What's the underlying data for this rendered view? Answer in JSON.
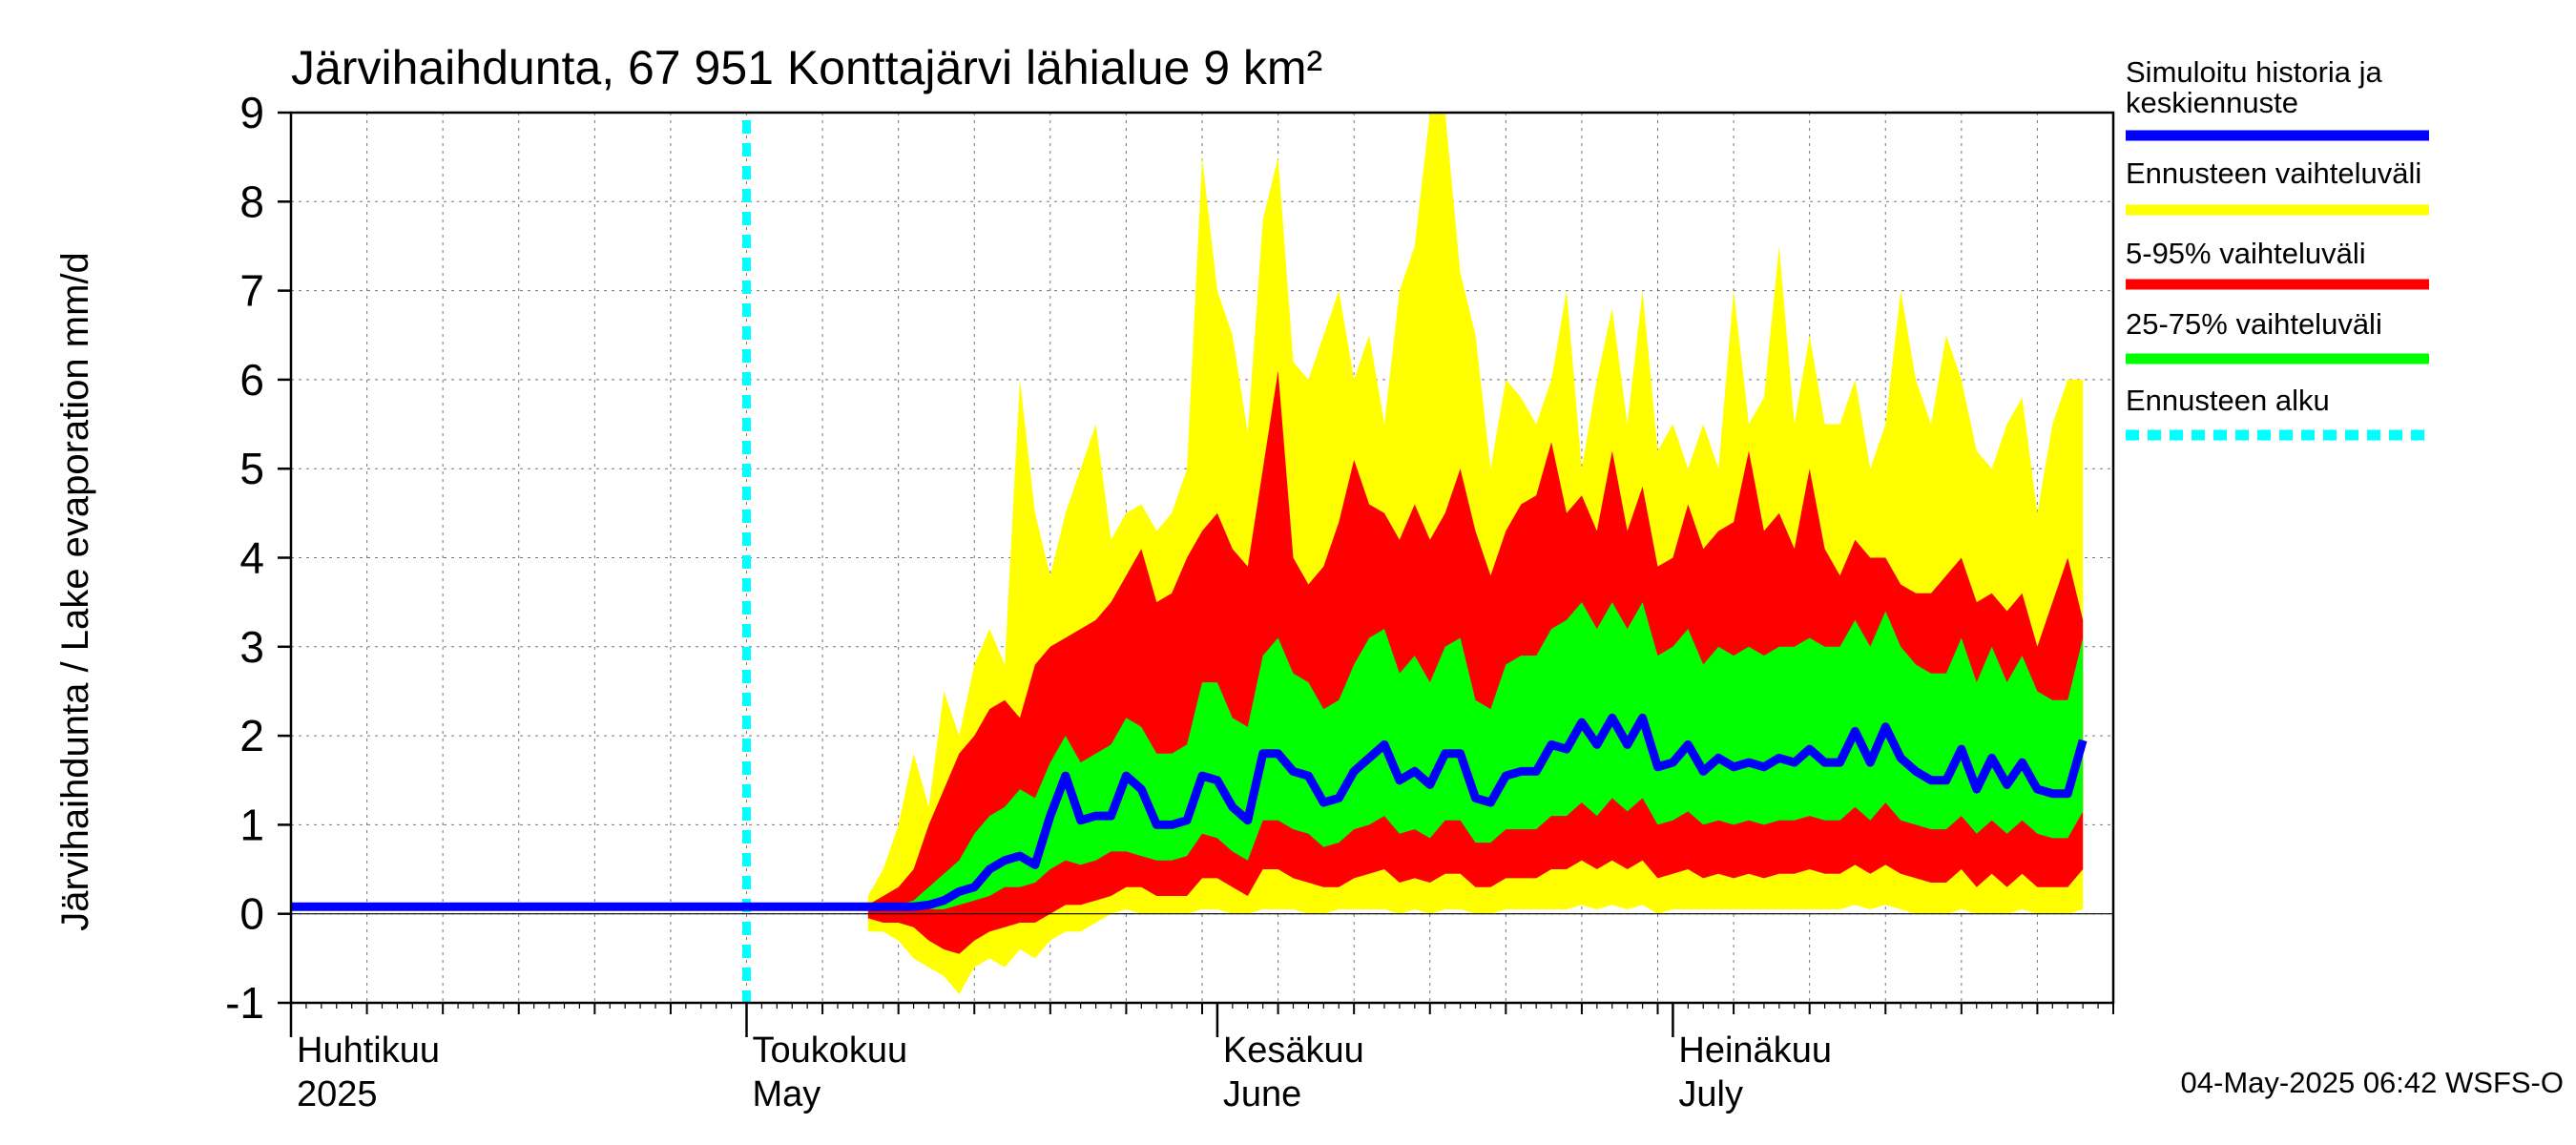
{
  "chart_data": {
    "type": "area",
    "title": "Järvihaihdunta, 67 951 Konttajärvi lähialue 9 km²",
    "ylabel": "Järvihaihdunta / Lake evaporation   mm/d",
    "xlabel": "",
    "ylim": [
      -1,
      9
    ],
    "yticks": [
      -1,
      0,
      1,
      2,
      3,
      4,
      5,
      6,
      7,
      8,
      9
    ],
    "x_range_days": [
      0,
      120
    ],
    "month_labels": [
      {
        "day": 0,
        "fi": "Huhtikuu",
        "en": "2025"
      },
      {
        "day": 30,
        "fi": "Toukokuu",
        "en": "May"
      },
      {
        "day": 61,
        "fi": "Kesäkuu",
        "en": "June"
      },
      {
        "day": 91,
        "fi": "Heinäkuu",
        "en": "July"
      }
    ],
    "forecast_start_day": 30,
    "legend": [
      {
        "label": "Simuloitu historia ja",
        "label2": "keskiennuste",
        "color": "#0000ff",
        "style": "solid"
      },
      {
        "label": "Ennusteen vaihteluväli",
        "color": "#ffff00",
        "style": "solid"
      },
      {
        "label": "5-95% vaihteluväli",
        "color": "#ff0000",
        "style": "solid"
      },
      {
        "label": "25-75% vaihteluväli",
        "color": "#00ff00",
        "style": "solid"
      },
      {
        "label": "Ennusteen alku",
        "color": "#00ffff",
        "style": "dotted"
      }
    ],
    "timestamp": "04-May-2025 06:42 WSFS-O",
    "series": {
      "start_day": 38,
      "median": [
        0.08,
        0.08,
        0.08,
        0.08,
        0.1,
        0.15,
        0.25,
        0.3,
        0.5,
        0.6,
        0.65,
        0.55,
        1.1,
        1.55,
        1.05,
        1.1,
        1.1,
        1.55,
        1.4,
        1.0,
        1.0,
        1.05,
        1.55,
        1.5,
        1.2,
        1.05,
        1.8,
        1.8,
        1.6,
        1.55,
        1.25,
        1.3,
        1.6,
        1.75,
        1.9,
        1.5,
        1.6,
        1.45,
        1.8,
        1.8,
        1.3,
        1.25,
        1.55,
        1.6,
        1.6,
        1.9,
        1.85,
        2.15,
        1.9,
        2.2,
        1.9,
        2.2,
        1.65,
        1.7,
        1.9,
        1.6,
        1.75,
        1.65,
        1.7,
        1.65,
        1.75,
        1.7,
        1.85,
        1.7,
        1.7,
        2.05,
        1.7,
        2.1,
        1.75,
        1.6,
        1.5,
        1.5,
        1.85,
        1.4,
        1.75,
        1.45,
        1.7,
        1.4,
        1.35,
        1.35,
        1.95
      ],
      "p25": [
        0.05,
        0.05,
        0.05,
        0.05,
        0.05,
        0.05,
        0.1,
        0.15,
        0.2,
        0.3,
        0.3,
        0.35,
        0.5,
        0.6,
        0.55,
        0.6,
        0.7,
        0.7,
        0.65,
        0.6,
        0.6,
        0.65,
        0.9,
        0.85,
        0.7,
        0.6,
        1.05,
        1.05,
        0.95,
        0.9,
        0.75,
        0.8,
        0.95,
        1.0,
        1.1,
        0.9,
        0.95,
        0.85,
        1.05,
        1.05,
        0.8,
        0.8,
        0.95,
        0.95,
        0.95,
        1.1,
        1.1,
        1.25,
        1.1,
        1.3,
        1.15,
        1.3,
        1.0,
        1.05,
        1.15,
        1.0,
        1.05,
        1.0,
        1.05,
        1.0,
        1.05,
        1.05,
        1.1,
        1.05,
        1.05,
        1.2,
        1.05,
        1.25,
        1.05,
        1.0,
        0.95,
        0.95,
        1.1,
        0.9,
        1.05,
        0.9,
        1.05,
        0.9,
        0.85,
        0.85,
        1.15
      ],
      "p75": [
        0.1,
        0.1,
        0.1,
        0.15,
        0.3,
        0.45,
        0.6,
        0.9,
        1.1,
        1.2,
        1.4,
        1.3,
        1.7,
        2.0,
        1.7,
        1.8,
        1.9,
        2.2,
        2.1,
        1.8,
        1.8,
        1.9,
        2.6,
        2.6,
        2.2,
        2.1,
        2.9,
        3.1,
        2.7,
        2.6,
        2.3,
        2.4,
        2.8,
        3.1,
        3.2,
        2.7,
        2.9,
        2.6,
        3.0,
        3.1,
        2.4,
        2.3,
        2.8,
        2.9,
        2.9,
        3.2,
        3.3,
        3.5,
        3.2,
        3.5,
        3.2,
        3.5,
        2.9,
        3.0,
        3.2,
        2.8,
        3.0,
        2.9,
        3.0,
        2.9,
        3.0,
        3.0,
        3.1,
        3.0,
        3.0,
        3.3,
        3.0,
        3.4,
        3.0,
        2.8,
        2.7,
        2.7,
        3.1,
        2.6,
        3.0,
        2.6,
        2.9,
        2.5,
        2.4,
        2.4,
        3.1
      ],
      "p5": [
        -0.05,
        -0.1,
        -0.1,
        -0.15,
        -0.3,
        -0.4,
        -0.45,
        -0.3,
        -0.2,
        -0.15,
        -0.1,
        -0.1,
        0.0,
        0.1,
        0.1,
        0.15,
        0.2,
        0.3,
        0.3,
        0.2,
        0.2,
        0.2,
        0.4,
        0.4,
        0.3,
        0.2,
        0.5,
        0.5,
        0.4,
        0.35,
        0.3,
        0.3,
        0.4,
        0.45,
        0.5,
        0.35,
        0.4,
        0.35,
        0.45,
        0.45,
        0.3,
        0.3,
        0.4,
        0.4,
        0.4,
        0.5,
        0.5,
        0.6,
        0.5,
        0.6,
        0.5,
        0.6,
        0.4,
        0.45,
        0.5,
        0.4,
        0.45,
        0.4,
        0.45,
        0.4,
        0.45,
        0.45,
        0.5,
        0.45,
        0.45,
        0.55,
        0.45,
        0.55,
        0.45,
        0.4,
        0.35,
        0.35,
        0.5,
        0.3,
        0.45,
        0.3,
        0.45,
        0.3,
        0.3,
        0.3,
        0.5
      ],
      "p95": [
        0.1,
        0.2,
        0.3,
        0.5,
        1.0,
        1.4,
        1.8,
        2.0,
        2.3,
        2.4,
        2.2,
        2.8,
        3.0,
        3.1,
        3.2,
        3.3,
        3.5,
        3.8,
        4.1,
        3.5,
        3.6,
        4.0,
        4.3,
        4.5,
        4.1,
        3.9,
        5.0,
        6.1,
        4.0,
        3.7,
        3.9,
        4.4,
        5.1,
        4.6,
        4.5,
        4.2,
        4.6,
        4.2,
        4.5,
        5.0,
        4.3,
        3.8,
        4.3,
        4.6,
        4.7,
        5.3,
        4.5,
        4.7,
        4.3,
        5.2,
        4.3,
        4.8,
        3.9,
        4.0,
        4.6,
        4.1,
        4.3,
        4.4,
        5.2,
        4.3,
        4.5,
        4.1,
        5.0,
        4.1,
        3.8,
        4.2,
        4.0,
        4.0,
        3.7,
        3.6,
        3.6,
        3.8,
        4.0,
        3.5,
        3.6,
        3.4,
        3.6,
        3.0,
        3.5,
        4.0,
        3.3
      ],
      "min": [
        -0.2,
        -0.2,
        -0.3,
        -0.5,
        -0.6,
        -0.7,
        -0.9,
        -0.6,
        -0.5,
        -0.6,
        -0.4,
        -0.5,
        -0.3,
        -0.2,
        -0.2,
        -0.1,
        0.0,
        0.05,
        0.0,
        0.0,
        0.0,
        0.0,
        0.05,
        0.05,
        0.0,
        0.0,
        0.05,
        0.05,
        0.05,
        0.0,
        0.0,
        0.05,
        0.05,
        0.05,
        0.05,
        0.0,
        0.05,
        0.0,
        0.05,
        0.05,
        0.0,
        0.0,
        0.05,
        0.05,
        0.05,
        0.05,
        0.05,
        0.1,
        0.05,
        0.1,
        0.05,
        0.1,
        0.0,
        0.05,
        0.05,
        0.05,
        0.05,
        0.05,
        0.05,
        0.05,
        0.05,
        0.05,
        0.05,
        0.05,
        0.05,
        0.1,
        0.05,
        0.1,
        0.05,
        0.0,
        0.0,
        0.0,
        0.05,
        0.0,
        0.0,
        0.0,
        0.05,
        0.0,
        0.0,
        0.0,
        0.05
      ],
      "max": [
        0.2,
        0.5,
        1.0,
        1.8,
        1.2,
        2.5,
        2.0,
        2.8,
        3.2,
        2.8,
        6.0,
        4.5,
        3.8,
        4.5,
        5.0,
        5.5,
        4.2,
        4.5,
        4.6,
        4.3,
        4.5,
        5.0,
        8.5,
        7.0,
        6.5,
        5.4,
        7.8,
        8.5,
        6.2,
        6.0,
        6.5,
        7.0,
        6.0,
        6.5,
        5.5,
        7.0,
        7.5,
        9.0,
        9.0,
        7.2,
        6.5,
        5.0,
        6.0,
        5.8,
        5.5,
        6.0,
        7.0,
        5.0,
        6.0,
        6.8,
        5.5,
        7.0,
        5.2,
        5.5,
        5.0,
        5.5,
        5.0,
        7.0,
        5.5,
        5.8,
        7.5,
        5.5,
        6.5,
        5.5,
        5.5,
        6.0,
        5.0,
        5.5,
        7.0,
        6.0,
        5.5,
        6.5,
        6.0,
        5.2,
        5.0,
        5.5,
        5.8,
        4.5,
        5.5,
        6.0,
        6.0
      ]
    }
  }
}
